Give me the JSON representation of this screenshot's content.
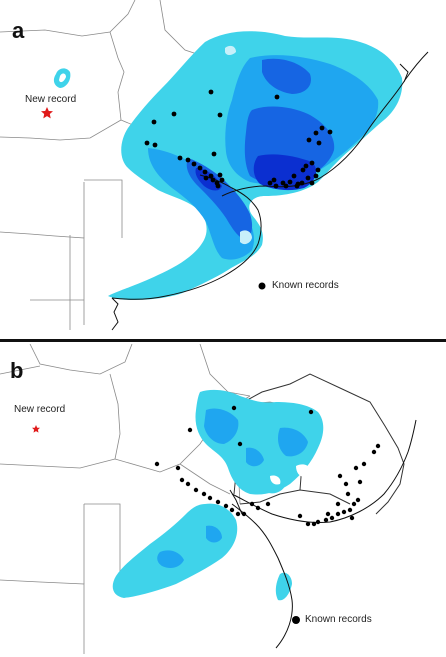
{
  "panels": [
    {
      "letter": "a",
      "new_record_label": "New record",
      "legend_label": "Known records"
    },
    {
      "letter": "b",
      "new_record_label": "New record",
      "legend_label": "Known records"
    }
  ],
  "colors": {
    "water_light": "#3fd3ea",
    "water_mid": "#1fa6f0",
    "water_deep": "#1665e3",
    "water_darkest": "#0b2fd0",
    "border": "#8a8a8a",
    "coast": "#111111",
    "record_dot": "#000000",
    "new_record_star": "#e01a1a"
  },
  "icons": {
    "new_record": "star-icon",
    "known_record": "dot-icon"
  }
}
